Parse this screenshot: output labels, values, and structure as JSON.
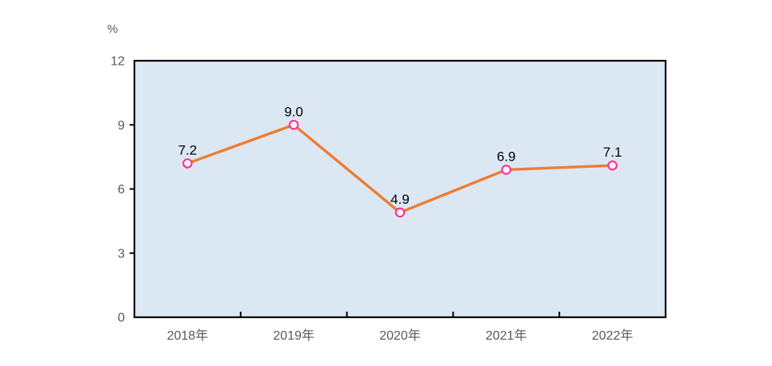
{
  "unit_label": "%",
  "chart_data": {
    "type": "line",
    "title": "",
    "xlabel": "",
    "ylabel": "%",
    "categories": [
      "2018年",
      "2019年",
      "2020年",
      "2021年",
      "2022年"
    ],
    "values": [
      7.2,
      9.0,
      4.9,
      6.9,
      7.1
    ],
    "data_labels": [
      "7.2",
      "9.0",
      "4.9",
      "6.9",
      "7.1"
    ],
    "ylim": [
      0,
      12
    ],
    "yticks": [
      0,
      3,
      6,
      9,
      12
    ],
    "grid": false,
    "legend": "none",
    "colors": {
      "line": "#ED7D31",
      "marker_stroke": "#FF3399",
      "marker_fill": "#FFFFFF",
      "plot_bg": "#DCE7F4",
      "border": "#000000",
      "axis_text": "#595959",
      "data_label": "#000000"
    }
  }
}
